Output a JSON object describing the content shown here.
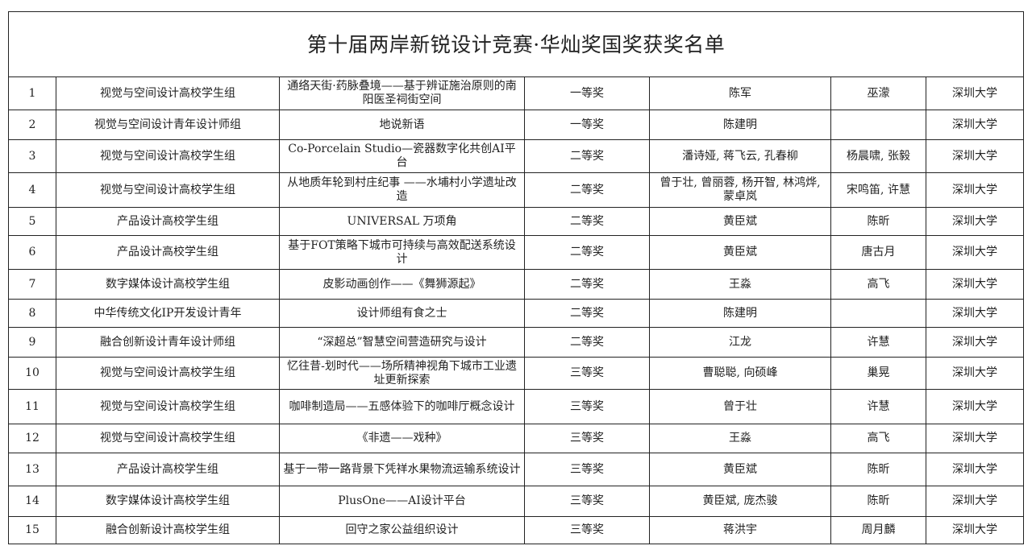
{
  "title": "第十届两岸新锐设计竞赛·华灿奖国奖获奖名单",
  "rows": [
    {
      "no": "1",
      "group": "视觉与空间设计高校学生组",
      "work": "通络天街·药脉叠境——基于辨证施治原则的南阳医圣祠街空间",
      "award": "一等奖",
      "authors": "陈军",
      "advisor": "巫濛",
      "school": "深圳大学"
    },
    {
      "no": "2",
      "group": "视觉与空间设计青年设计师组",
      "work": "地说新语",
      "award": "一等奖",
      "authors": "陈建明",
      "advisor": "",
      "school": "深圳大学"
    },
    {
      "no": "3",
      "group": "视觉与空间设计高校学生组",
      "work": "Co-Porcelain Studio—瓷器数字化共创AI平台",
      "award": "二等奖",
      "authors": "潘诗娅, 蒋飞云, 孔春柳",
      "advisor": "杨晨啸, 张毅",
      "school": "深圳大学"
    },
    {
      "no": "4",
      "group": "视觉与空间设计高校学生组",
      "work": "从地质年轮到村庄纪事 ——水埔村小学遗址改造",
      "award": "二等奖",
      "authors": "曾于壮, 曾丽蓉, 杨开智, 林鸿烨, 蒙卓岚",
      "advisor": "宋鸣笛, 许慧",
      "school": "深圳大学"
    },
    {
      "no": "5",
      "group": "产品设计高校学生组",
      "work": "UNIVERSAL 万项角",
      "award": "二等奖",
      "authors": "黄臣斌",
      "advisor": "陈昕",
      "school": "深圳大学"
    },
    {
      "no": "6",
      "group": "产品设计高校学生组",
      "work": "基于FOT策略下城市可持续与高效配送系统设计",
      "award": "二等奖",
      "authors": "黄臣斌",
      "advisor": "唐古月",
      "school": "深圳大学"
    },
    {
      "no": "7",
      "group": "数字媒体设计高校学生组",
      "work": "皮影动画创作——《舞狮源起》",
      "award": "二等奖",
      "authors": "王淼",
      "advisor": "高飞",
      "school": "深圳大学"
    },
    {
      "no": "8",
      "group": "中华传统文化IP开发设计青年",
      "work": "设计师组有食之士",
      "award": "二等奖",
      "authors": "陈建明",
      "advisor": "",
      "school": "深圳大学"
    },
    {
      "no": "9",
      "group": "融合创新设计青年设计师组",
      "work": "“深超总”智慧空间营造研究与设计",
      "award": "二等奖",
      "authors": "江龙",
      "advisor": "许慧",
      "school": "深圳大学"
    },
    {
      "no": "10",
      "group": "视觉与空间设计高校学生组",
      "work": "忆往昔-划时代——场所精神视角下城市工业遗址更新探索",
      "award": "三等奖",
      "authors": "曹聪聪, 向硕峰",
      "advisor": "巢晃",
      "school": "深圳大学"
    },
    {
      "no": "11",
      "group": "视觉与空间设计高校学生组",
      "work": "咖啡制造局——五感体验下的咖啡厅概念设计",
      "award": "三等奖",
      "authors": "曾于壮",
      "advisor": "许慧",
      "school": "深圳大学"
    },
    {
      "no": "12",
      "group": "视觉与空间设计高校学生组",
      "work": "《非遗——戏种》",
      "award": "三等奖",
      "authors": "王淼",
      "advisor": "高飞",
      "school": "深圳大学"
    },
    {
      "no": "13",
      "group": "产品设计高校学生组",
      "work": "基于一带一路背景下凭祥水果物流运输系统设计",
      "award": "三等奖",
      "authors": "黄臣斌",
      "advisor": "陈昕",
      "school": "深圳大学"
    },
    {
      "no": "14",
      "group": "数字媒体设计高校学生组",
      "work": "PlusOne——AI设计平台",
      "award": "三等奖",
      "authors": "黄臣斌, 庞杰骏",
      "advisor": "陈昕",
      "school": "深圳大学"
    },
    {
      "no": "15",
      "group": "融合创新设计高校学生组",
      "work": "回守之家公益组织设计",
      "award": "三等奖",
      "authors": "蒋洪宇",
      "advisor": "周月麟",
      "school": "深圳大学"
    }
  ]
}
